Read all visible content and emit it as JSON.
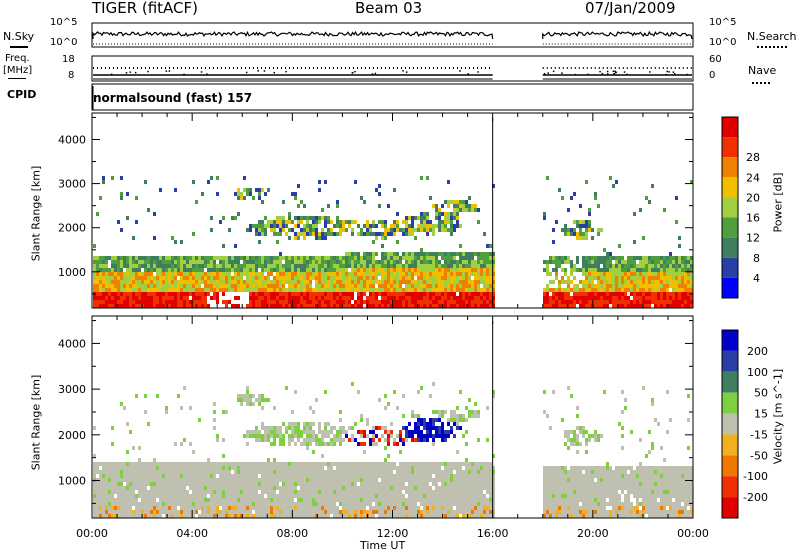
{
  "header": {
    "radar": "TIGER (fitACF)",
    "beam": "Beam 03",
    "date": "07/Jan/2009"
  },
  "nsky_panel": {
    "left_label": "N.Sky",
    "right_label": "N.Search",
    "left_ticks": [
      "10^5",
      "10^0"
    ],
    "right_ticks": [
      "10^5",
      "10^0"
    ]
  },
  "freq_panel": {
    "left_label_1": "Freq.",
    "left_label_2": "[MHz]",
    "right_label": "Nave",
    "left_ticks": [
      "18",
      "8"
    ],
    "right_ticks": [
      "60",
      "0"
    ]
  },
  "cpid": {
    "label": "CPID",
    "value": "normalsound (fast) 157"
  },
  "colors": {
    "power_scale": [
      "#0000ff",
      "#2a3fa6",
      "#3f7f5f",
      "#4f9f3f",
      "#a0d040",
      "#f0c000",
      "#f08000",
      "#f03000",
      "#e00000"
    ],
    "velocity_scale": [
      "#0000c8",
      "#2a3fa6",
      "#3f7f5f",
      "#7fd040",
      "#c0c0b0",
      "#f0b020",
      "#f07800",
      "#f03000",
      "#e00000"
    ]
  },
  "chart_data": [
    {
      "type": "heatmap",
      "title": "Power",
      "ylabel": "Slant Range [km]",
      "xlabel": "",
      "xticks": [
        "00:00",
        "04:00",
        "08:00",
        "12:00",
        "16:00",
        "20:00",
        "00:00"
      ],
      "yticks": [
        "1000",
        "2000",
        "3000",
        "4000"
      ],
      "ylim": [
        180,
        4600
      ],
      "xlim": [
        0,
        24
      ],
      "data_gap_hours": [
        16,
        18
      ],
      "colorbar": {
        "label": "Power [dB]",
        "ticks": [
          "4",
          "8",
          "12",
          "16",
          "20",
          "24",
          "28"
        ]
      }
    },
    {
      "type": "heatmap",
      "title": "Velocity",
      "ylabel": "Slant Range [km]",
      "xlabel": "Time UT",
      "xticks": [
        "00:00",
        "04:00",
        "08:00",
        "12:00",
        "16:00",
        "20:00",
        "00:00"
      ],
      "yticks": [
        "1000",
        "2000",
        "3000",
        "4000"
      ],
      "ylim": [
        180,
        4600
      ],
      "xlim": [
        0,
        24
      ],
      "data_gap_hours": [
        16,
        18
      ],
      "colorbar": {
        "label": "Velocity [m s^-1]",
        "ticks": [
          "200",
          "100",
          "50",
          "15",
          "-15",
          "-50",
          "-100",
          "-200"
        ]
      }
    }
  ]
}
